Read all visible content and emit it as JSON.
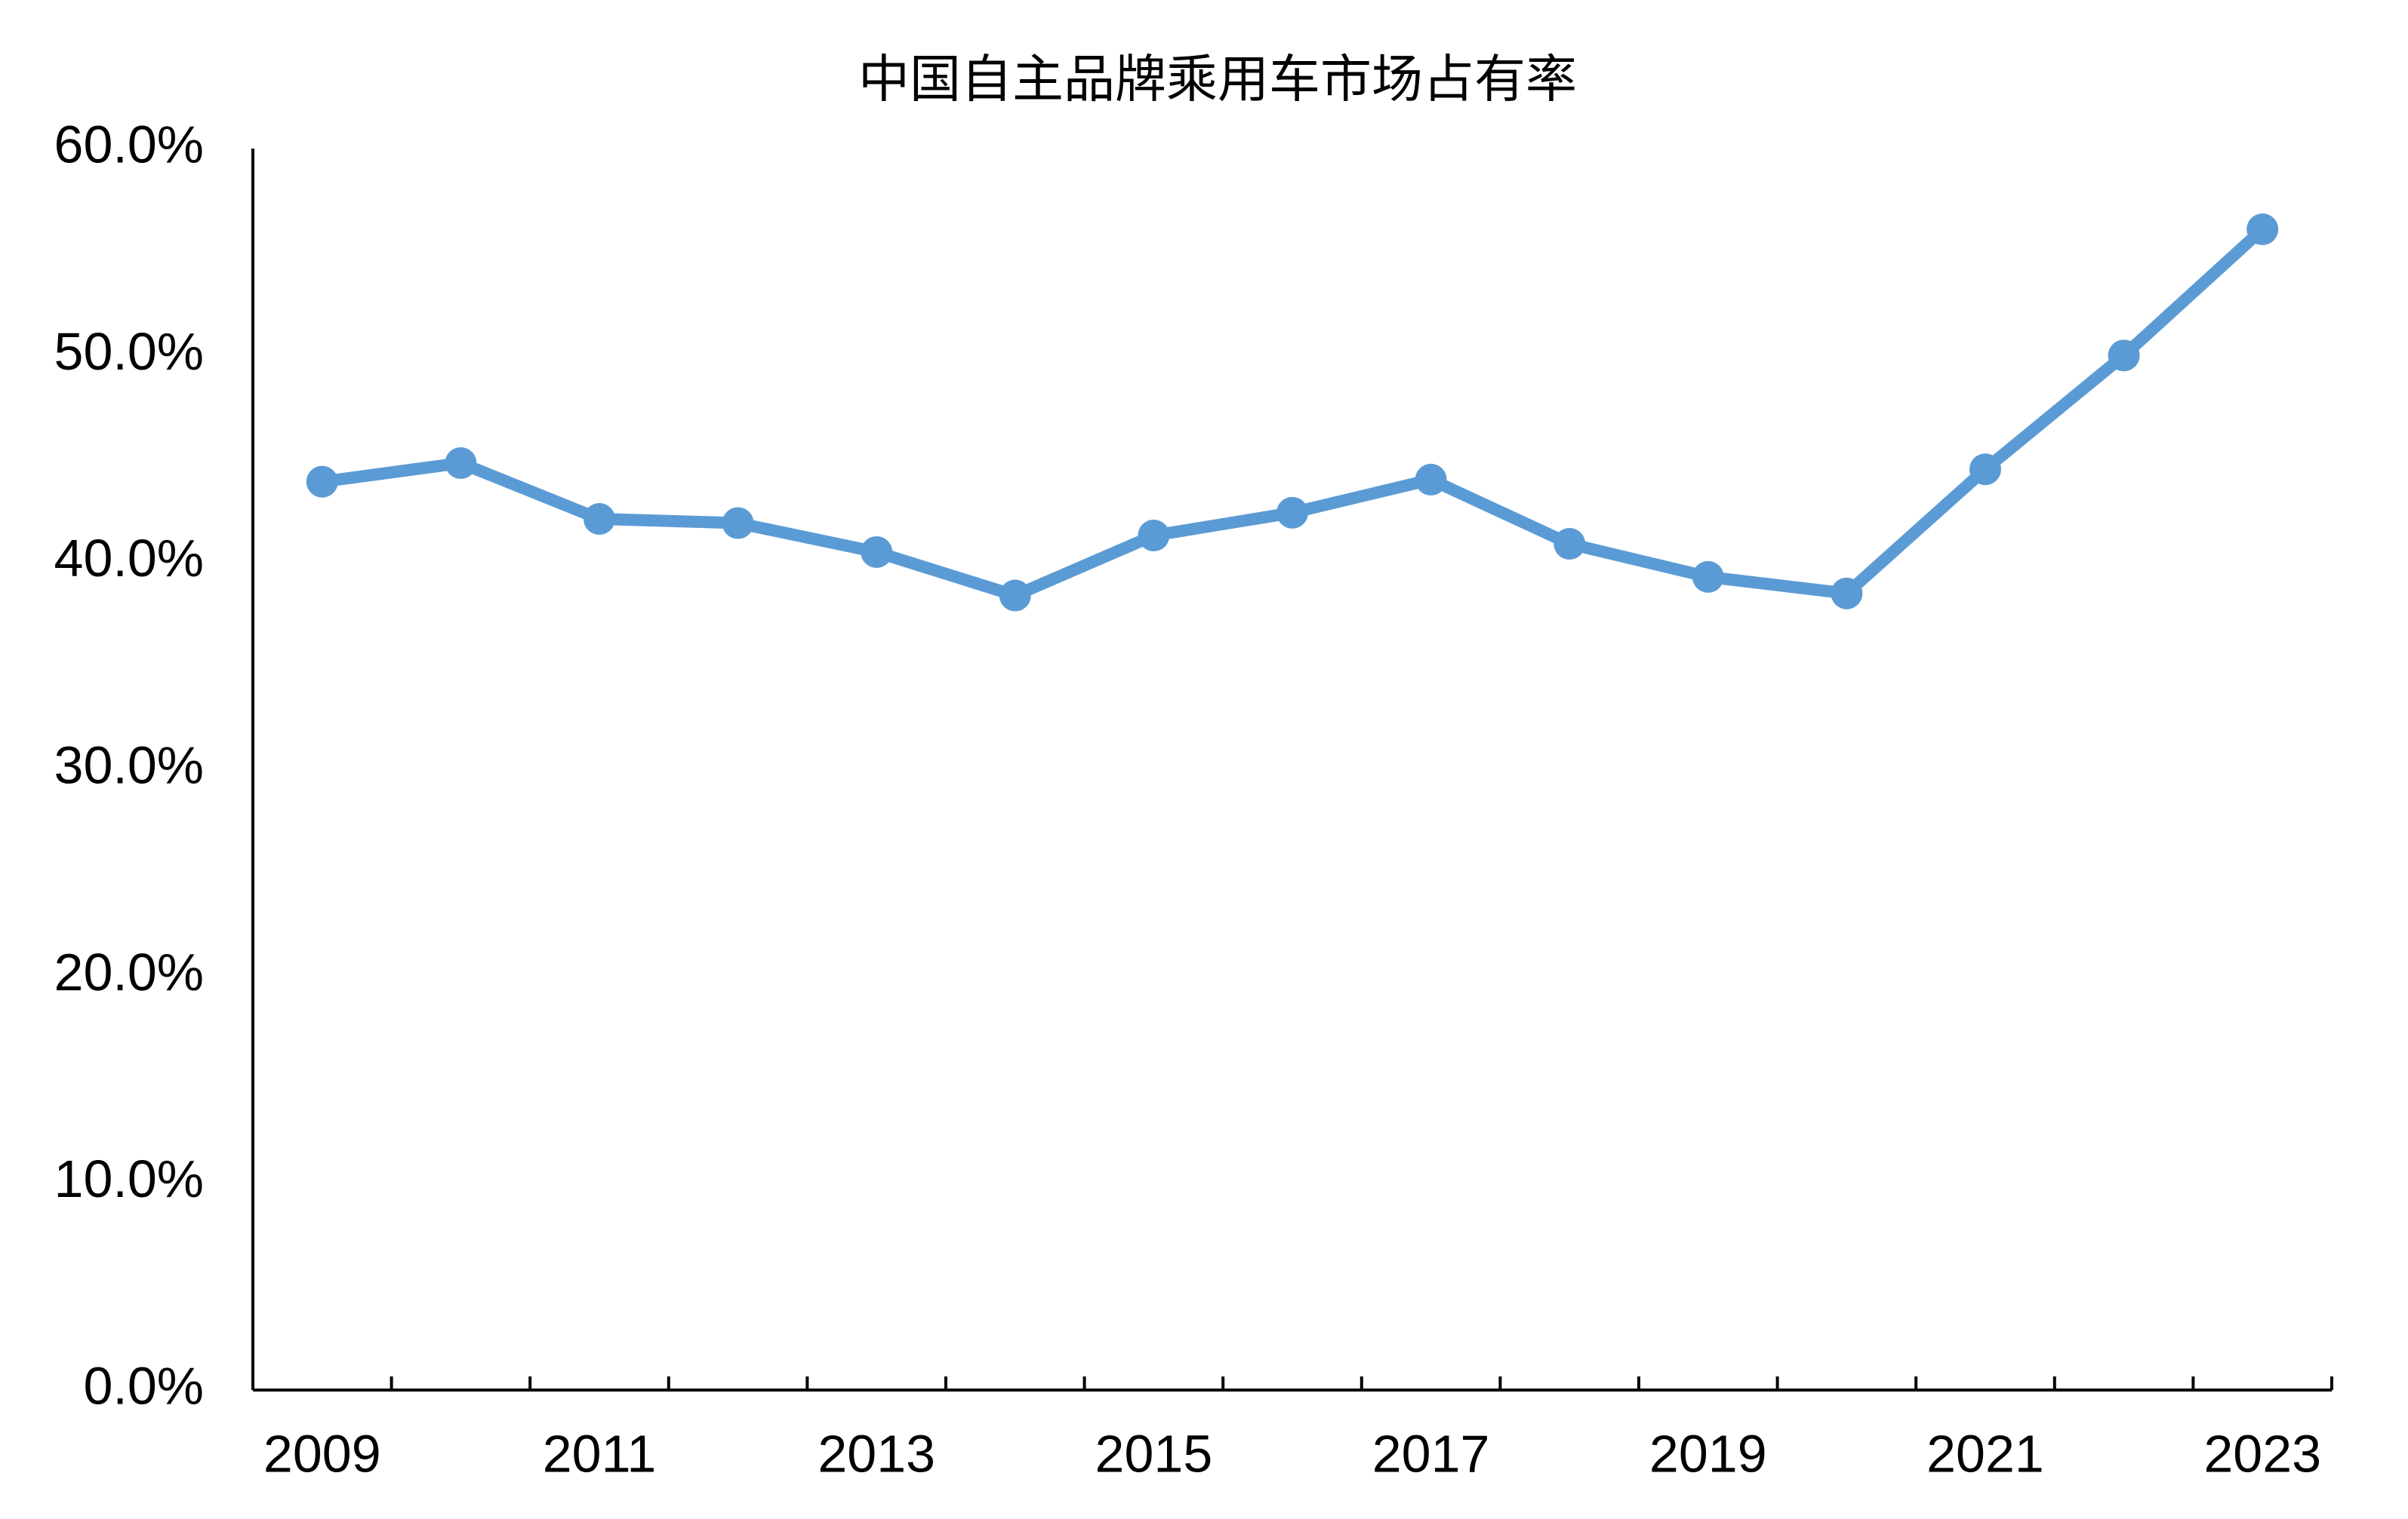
{
  "chart_data": {
    "type": "line",
    "title": "中国自主品牌乘用车市场占有率",
    "categories": [
      "2009",
      null,
      "2011",
      null,
      "2013",
      null,
      "2015",
      null,
      "2017",
      null,
      "2019",
      null,
      "2021",
      null,
      "2023"
    ],
    "series": [
      {
        "color": "#5b9bd5",
        "values": [
          43.9,
          44.8,
          42.1,
          41.9,
          40.5,
          38.4,
          41.3,
          42.4,
          44.0,
          40.9,
          39.3,
          38.5,
          44.5,
          50.0,
          56.1
        ]
      }
    ],
    "ylim": [
      0,
      60
    ],
    "yticks": [
      {
        "value": 0,
        "label": "0.0%"
      },
      {
        "value": 10,
        "label": "10.0%"
      },
      {
        "value": 20,
        "label": "20.0%"
      },
      {
        "value": 30,
        "label": "30.0%"
      },
      {
        "value": 40,
        "label": "40.0%"
      },
      {
        "value": 50,
        "label": "50.0%"
      },
      {
        "value": 60,
        "label": "60.0%"
      }
    ],
    "grid": false
  }
}
